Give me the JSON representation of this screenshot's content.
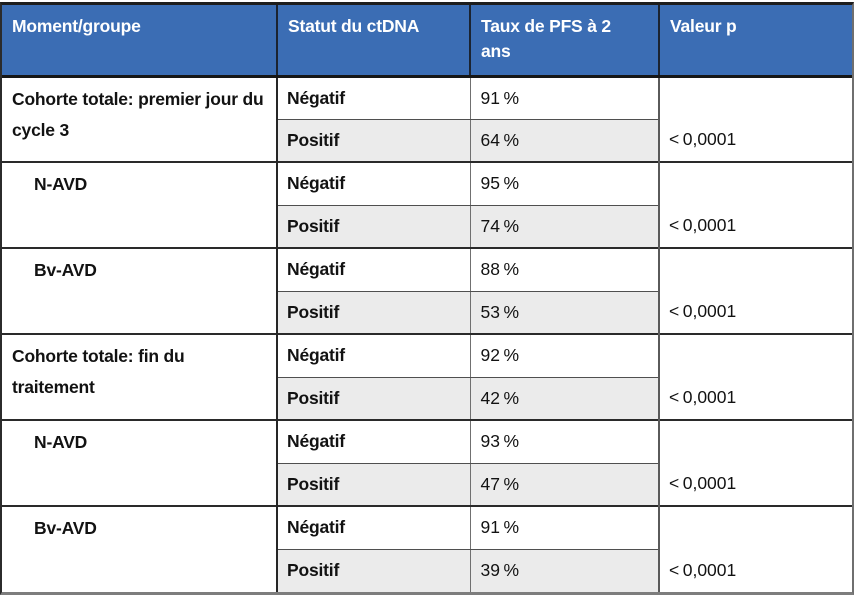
{
  "table": {
    "header": {
      "moment": "Moment/groupe",
      "statut": "Statut du ctDNA",
      "taux": "Taux de PFS à 2\nans",
      "valeur_p": "Valeur p"
    },
    "groups": [
      {
        "moment": "Cohorte totale: premier jour du cycle 3",
        "rows": [
          {
            "statut": "Négatif",
            "pfs": "91 %"
          },
          {
            "statut": "Positif",
            "pfs": "64 %"
          }
        ],
        "p": "< 0,0001"
      },
      {
        "moment": "N-AVD",
        "rows": [
          {
            "statut": "Négatif",
            "pfs": "95 %"
          },
          {
            "statut": "Positif",
            "pfs": "74 %"
          }
        ],
        "p": "< 0,0001"
      },
      {
        "moment": "Bv-AVD",
        "rows": [
          {
            "statut": "Négatif",
            "pfs": "88 %"
          },
          {
            "statut": "Positif",
            "pfs": "53 %"
          }
        ],
        "p": "< 0,0001"
      },
      {
        "moment": "Cohorte totale: fin du traitement",
        "rows": [
          {
            "statut": "Négatif",
            "pfs": "92 %"
          },
          {
            "statut": "Positif",
            "pfs": "42 %"
          }
        ],
        "p": "< 0,0001"
      },
      {
        "moment": "N-AVD",
        "rows": [
          {
            "statut": "Négatif",
            "pfs": "93 %"
          },
          {
            "statut": "Positif",
            "pfs": "47 %"
          }
        ],
        "p": "< 0,0001"
      },
      {
        "moment": "Bv-AVD",
        "rows": [
          {
            "statut": "Négatif",
            "pfs": "91 %"
          },
          {
            "statut": "Positif",
            "pfs": "39 %"
          }
        ],
        "p": "< 0,0001"
      }
    ]
  },
  "colors": {
    "header_bg": "#3B6DB4",
    "header_text": "#FFFFFF",
    "row_alt_bg": "#EBEBEB",
    "border_dark": "#262626"
  }
}
